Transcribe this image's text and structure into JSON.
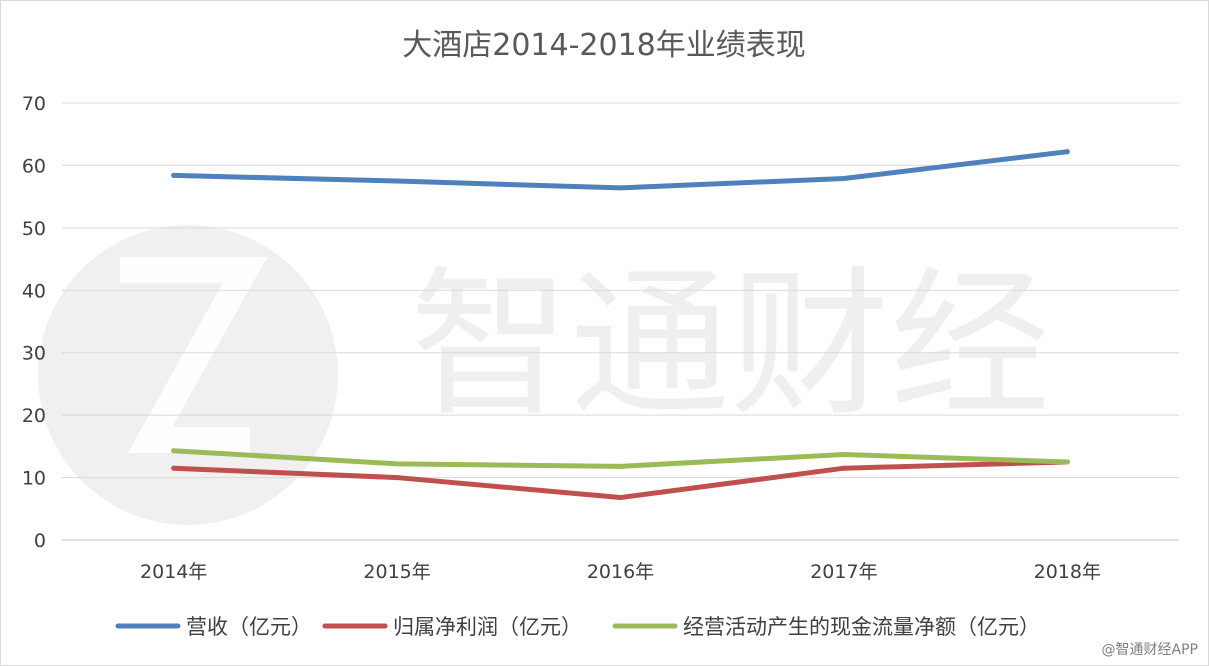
{
  "chart_data": {
    "type": "line",
    "title": "大酒店2014-2018年业绩表现",
    "categories": [
      "2014年",
      "2015年",
      "2016年",
      "2017年",
      "2018年"
    ],
    "ylim": [
      0,
      70
    ],
    "yticks": [
      0,
      10,
      20,
      30,
      40,
      50,
      60,
      70
    ],
    "grid": true,
    "legend_position": "bottom",
    "series": [
      {
        "name": "营收（亿元）",
        "color": "#4f81bd",
        "values": [
          58.4,
          57.5,
          56.4,
          57.9,
          62.2
        ]
      },
      {
        "name": "归属净利润（亿元）",
        "color": "#c0504d",
        "values": [
          11.5,
          10.0,
          6.8,
          11.5,
          12.5
        ]
      },
      {
        "name": "经营活动产生的现金流量净额（亿元）",
        "color": "#9bbb59",
        "values": [
          14.3,
          12.2,
          11.8,
          13.7,
          12.5
        ]
      }
    ]
  },
  "watermark": {
    "text": "智通财经",
    "credit": "@智通财经APP"
  }
}
